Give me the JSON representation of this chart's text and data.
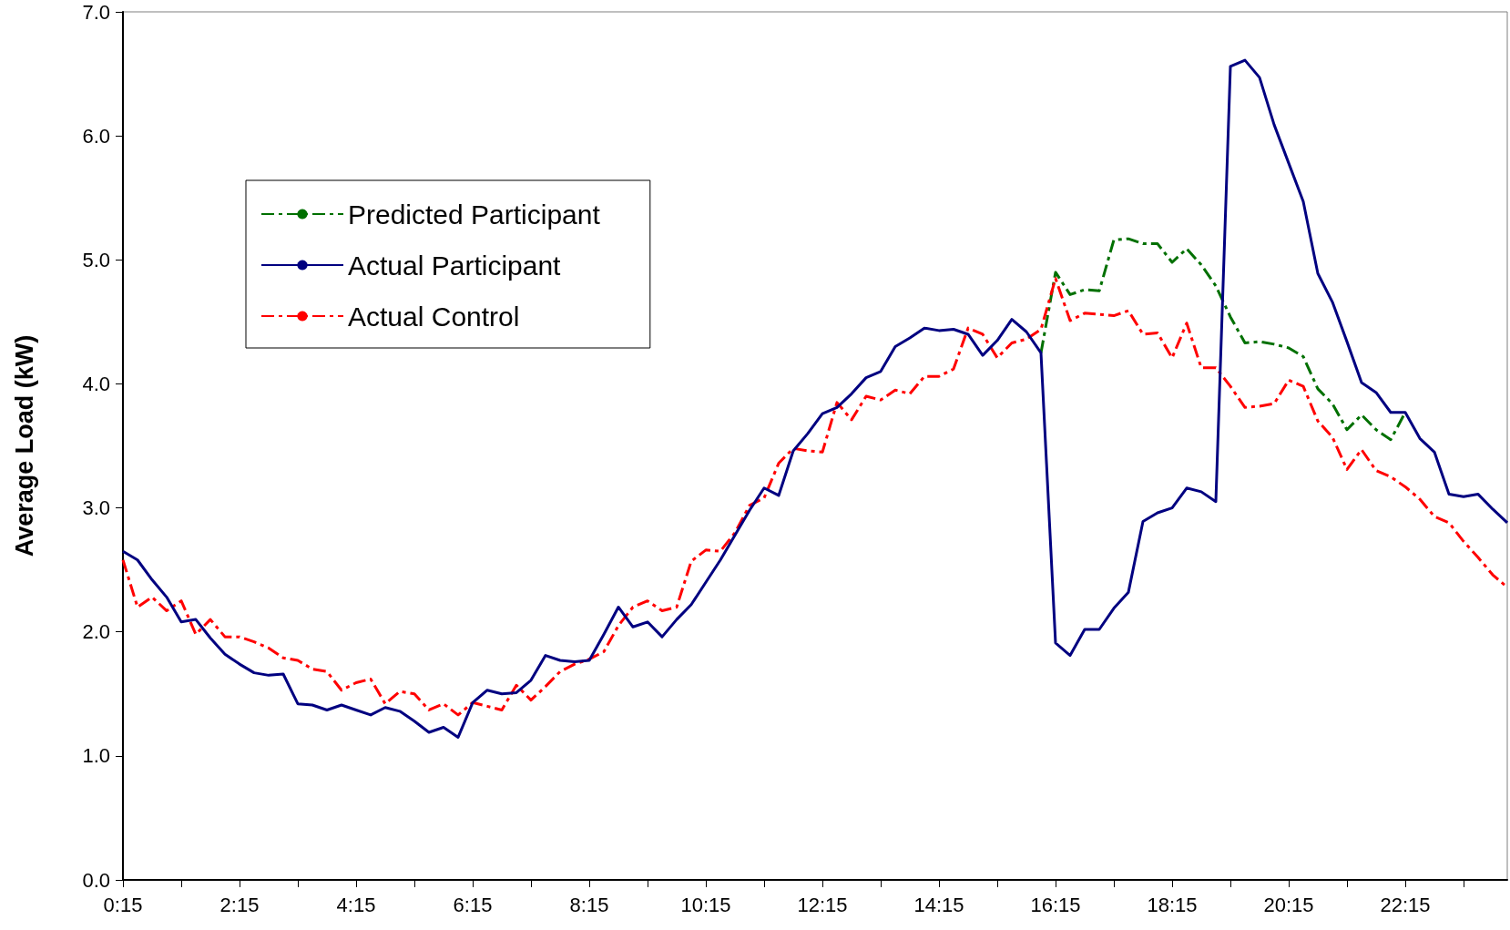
{
  "chart_data": {
    "type": "line",
    "ylabel": "Average Load (kW)",
    "categories": [
      "0:15",
      null,
      null,
      null,
      null,
      null,
      null,
      null,
      "2:15",
      null,
      null,
      null,
      null,
      null,
      null,
      null,
      "4:15",
      null,
      null,
      null,
      null,
      null,
      null,
      null,
      "6:15",
      null,
      null,
      null,
      null,
      null,
      null,
      null,
      "8:15",
      null,
      null,
      null,
      null,
      null,
      null,
      null,
      "10:15",
      null,
      null,
      null,
      null,
      null,
      null,
      null,
      "12:15",
      null,
      null,
      null,
      null,
      null,
      null,
      null,
      "14:15",
      null,
      null,
      null,
      null,
      null,
      null,
      null,
      "16:15",
      null,
      null,
      null,
      null,
      null,
      null,
      null,
      "18:15",
      null,
      null,
      null,
      null,
      null,
      null,
      null,
      "20:15",
      null,
      null,
      null,
      null,
      null,
      null,
      null,
      "22:15",
      null,
      null,
      null,
      null,
      null,
      null,
      null
    ],
    "ylim": [
      0,
      7
    ],
    "yticks": [
      {
        "value": 0,
        "label": "0.0"
      },
      {
        "value": 1,
        "label": "1.0"
      },
      {
        "value": 2,
        "label": "2.0"
      },
      {
        "value": 3,
        "label": "3.0"
      },
      {
        "value": 4,
        "label": "4.0"
      },
      {
        "value": 5,
        "label": "5.0"
      },
      {
        "value": 6,
        "label": "6.0"
      },
      {
        "value": 7,
        "label": "7.0"
      }
    ],
    "grid": false,
    "legend": "top left",
    "marker": "none",
    "series": [
      {
        "name": "Predicted Participant",
        "color": "#007000",
        "line_style": "dashed",
        "values": [
          null,
          null,
          null,
          null,
          null,
          null,
          null,
          null,
          null,
          null,
          null,
          null,
          null,
          null,
          null,
          null,
          null,
          null,
          null,
          null,
          null,
          null,
          null,
          null,
          null,
          null,
          null,
          null,
          null,
          null,
          null,
          null,
          null,
          null,
          null,
          null,
          null,
          null,
          null,
          null,
          null,
          null,
          null,
          null,
          null,
          null,
          null,
          null,
          null,
          null,
          null,
          null,
          null,
          null,
          null,
          null,
          null,
          null,
          null,
          null,
          null,
          null,
          null,
          4.25,
          4.9,
          4.72,
          4.76,
          4.75,
          5.16,
          5.17,
          5.13,
          5.13,
          4.98,
          5.09,
          4.96,
          4.79,
          4.54,
          4.33,
          4.34,
          4.32,
          4.29,
          4.22,
          3.96,
          3.84,
          3.63,
          3.75,
          3.63,
          3.55,
          3.77,
          null,
          null,
          null,
          null,
          null,
          null,
          null
        ]
      },
      {
        "name": "Actual Participant",
        "color": "#000080",
        "line_style": "solid",
        "values": [
          2.65,
          2.58,
          2.42,
          2.28,
          2.08,
          2.1,
          1.95,
          1.82,
          1.74,
          1.67,
          1.65,
          1.66,
          1.42,
          1.41,
          1.37,
          1.41,
          1.37,
          1.33,
          1.39,
          1.36,
          1.28,
          1.19,
          1.23,
          1.15,
          1.43,
          1.53,
          1.5,
          1.51,
          1.61,
          1.81,
          1.77,
          1.76,
          1.77,
          1.98,
          2.2,
          2.04,
          2.08,
          1.96,
          2.1,
          2.22,
          2.4,
          2.58,
          2.78,
          2.98,
          3.16,
          3.1,
          3.46,
          3.6,
          3.76,
          3.81,
          3.92,
          4.05,
          4.1,
          4.3,
          4.37,
          4.45,
          4.43,
          4.44,
          4.4,
          4.23,
          4.35,
          4.52,
          4.42,
          4.25,
          1.91,
          1.81,
          2.02,
          2.02,
          2.19,
          2.32,
          2.89,
          2.96,
          3.0,
          3.16,
          3.13,
          3.05,
          6.56,
          6.61,
          6.47,
          6.09,
          5.78,
          5.47,
          4.89,
          4.66,
          4.34,
          4.01,
          3.93,
          3.77,
          3.77,
          3.56,
          3.45,
          3.11,
          3.09,
          3.11,
          2.99,
          2.88
        ]
      },
      {
        "name": "Actual Control",
        "color": "#ff0000",
        "line_style": "dashed",
        "values": [
          2.58,
          2.2,
          2.28,
          2.17,
          2.25,
          1.98,
          2.1,
          1.96,
          1.96,
          1.92,
          1.87,
          1.79,
          1.77,
          1.7,
          1.68,
          1.53,
          1.59,
          1.62,
          1.42,
          1.52,
          1.5,
          1.37,
          1.42,
          1.33,
          1.43,
          1.4,
          1.37,
          1.57,
          1.45,
          1.56,
          1.68,
          1.74,
          1.78,
          1.84,
          2.05,
          2.2,
          2.25,
          2.17,
          2.2,
          2.57,
          2.66,
          2.65,
          2.8,
          3.02,
          3.08,
          3.36,
          3.48,
          3.46,
          3.45,
          3.85,
          3.71,
          3.9,
          3.87,
          3.95,
          3.92,
          4.06,
          4.06,
          4.12,
          4.45,
          4.4,
          4.21,
          4.33,
          4.36,
          4.44,
          4.85,
          4.51,
          4.57,
          4.56,
          4.55,
          4.59,
          4.4,
          4.41,
          4.21,
          4.49,
          4.13,
          4.13,
          3.98,
          3.81,
          3.82,
          3.84,
          4.03,
          3.98,
          3.7,
          3.57,
          3.31,
          3.47,
          3.3,
          3.25,
          3.17,
          3.07,
          2.93,
          2.88,
          2.73,
          2.6,
          2.46,
          2.36
        ]
      }
    ]
  }
}
